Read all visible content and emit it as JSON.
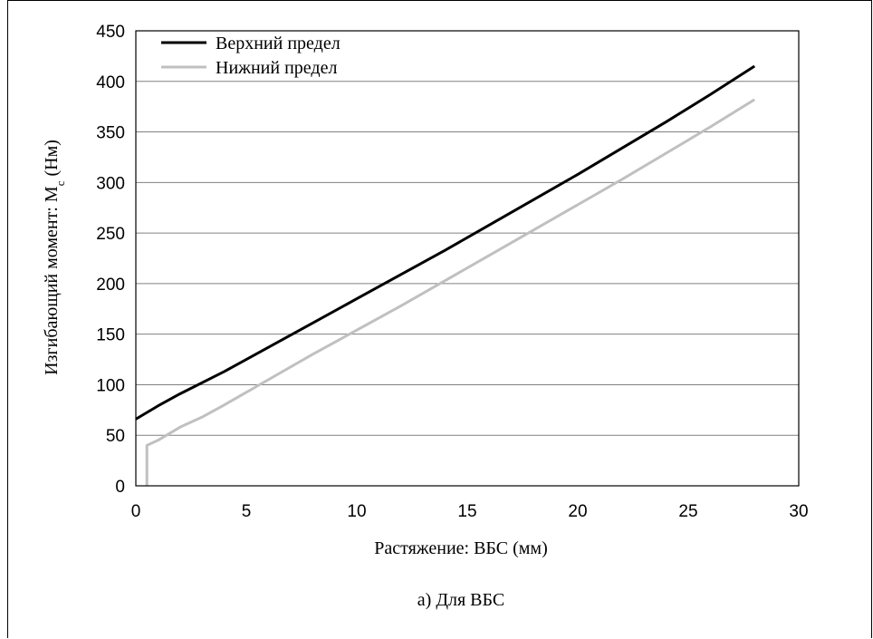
{
  "chart_data": {
    "type": "line",
    "xlabel": "Растяжение: ВБС (мм)",
    "ylabel_main": "Изгибающий момент: M",
    "ylabel_sub": "c",
    "ylabel_unit": " (Нм)",
    "caption": "а) Для ВБС",
    "xlim": [
      0,
      30
    ],
    "ylim": [
      0,
      450
    ],
    "x_ticks": [
      0,
      5,
      10,
      15,
      20,
      25,
      30
    ],
    "y_ticks": [
      0,
      50,
      100,
      150,
      200,
      250,
      300,
      350,
      400,
      450
    ],
    "grid": "horizontal",
    "legend_position": "top-left",
    "series": [
      {
        "name": "Верхний предел",
        "color": "#000000",
        "points": [
          [
            0,
            66
          ],
          [
            1,
            79
          ],
          [
            2,
            91
          ],
          [
            4,
            113
          ],
          [
            6,
            137
          ],
          [
            8,
            161
          ],
          [
            10,
            185
          ],
          [
            12,
            209
          ],
          [
            14,
            233
          ],
          [
            16,
            258
          ],
          [
            18,
            283
          ],
          [
            20,
            308
          ],
          [
            22,
            334
          ],
          [
            24,
            360
          ],
          [
            26,
            387
          ],
          [
            28,
            415
          ]
        ]
      },
      {
        "name": "Нижний предел",
        "color": "#c0c0c0",
        "points": [
          [
            0.5,
            0
          ],
          [
            0.5,
            40
          ],
          [
            1,
            45
          ],
          [
            2,
            58
          ],
          [
            3,
            68
          ],
          [
            4,
            80
          ],
          [
            6,
            105
          ],
          [
            8,
            130
          ],
          [
            10,
            154
          ],
          [
            12,
            178
          ],
          [
            14,
            203
          ],
          [
            16,
            228
          ],
          [
            18,
            253
          ],
          [
            20,
            278
          ],
          [
            22,
            303
          ],
          [
            24,
            329
          ],
          [
            26,
            355
          ],
          [
            28,
            382
          ]
        ]
      }
    ]
  }
}
